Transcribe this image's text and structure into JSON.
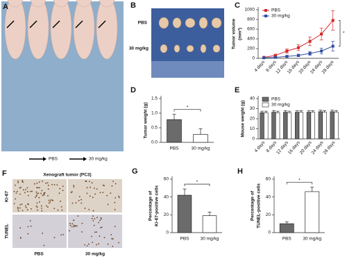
{
  "figure": {
    "panel_a": {
      "label": "A",
      "legend": [
        "PBS",
        "30 mg/kg"
      ]
    },
    "panel_b": {
      "label": "B",
      "rows": [
        "PBS",
        "30 mg/kg"
      ]
    },
    "panel_f": {
      "label": "F",
      "title": "Xenograft tumor (PC3)",
      "rows": [
        "Ki-67",
        "TUNEL"
      ],
      "columns": [
        "PBS",
        "30 mg/kg"
      ]
    }
  },
  "chart_data": [
    {
      "type": "line",
      "label": "C",
      "ylabel": [
        "Tumor volume",
        "(mm³)"
      ],
      "categories": [
        "4 days",
        "8 days",
        "12 days",
        "16 days",
        "20 days",
        "24 days",
        "28 days"
      ],
      "series": [
        {
          "name": "PBS",
          "color": "#d62728",
          "values": [
            20,
            60,
            150,
            220,
            350,
            500,
            780
          ],
          "errors": [
            10,
            25,
            40,
            60,
            90,
            120,
            200
          ]
        },
        {
          "name": "30 mg/kg",
          "color": "#2e4e9e",
          "values": [
            10,
            20,
            40,
            60,
            100,
            150,
            250
          ],
          "errors": [
            5,
            10,
            20,
            25,
            40,
            60,
            100
          ]
        }
      ],
      "ylim": [
        0,
        1000
      ],
      "yticks": [
        0,
        200,
        400,
        600,
        800,
        1000
      ],
      "annotation": "*",
      "legend": "top-left"
    },
    {
      "type": "bar",
      "label": "D",
      "ylabel": [
        "Tumor weight (g)"
      ],
      "categories": [
        "PBS",
        "30 mg/kg"
      ],
      "values": [
        0.78,
        0.27
      ],
      "errors": [
        0.18,
        0.2
      ],
      "colors": [
        "#6b6b6b",
        "#ffffff"
      ],
      "ylim": [
        0,
        1.5
      ],
      "yticks": [
        {
          "value": 0,
          "label": "0.0"
        },
        0.5,
        {
          "value": 1,
          "label": "1.0"
        },
        1.5
      ],
      "annotation": "*"
    },
    {
      "type": "bar",
      "label": "E",
      "ylabel": [
        "Mouse weight (g)"
      ],
      "categories": [
        "4 days",
        "8 days",
        "12 days",
        "16 days",
        "20 days",
        "24 days",
        "28 days"
      ],
      "series": [
        {
          "name": "PBS",
          "color": "#6b6b6b",
          "values": [
            26,
            26.5,
            26.5,
            26.5,
            26.5,
            27,
            27
          ],
          "errors": [
            1.5,
            1.5,
            1.5,
            1.5,
            1.5,
            1.5,
            1.5
          ]
        },
        {
          "name": "30 mg/kg",
          "color": "#ffffff",
          "values": [
            26,
            26,
            26,
            26.5,
            26.5,
            26.5,
            26.5
          ],
          "errors": [
            1.5,
            1.5,
            1.5,
            1.5,
            1.5,
            1.5,
            1.5
          ]
        }
      ],
      "ylim": [
        0,
        40
      ],
      "yticks": [
        0,
        10,
        20,
        30,
        40
      ],
      "legend": "top-left"
    },
    {
      "type": "bar",
      "label": "G",
      "ylabel": [
        "Percentage of",
        "Ki-67-positive cells"
      ],
      "categories": [
        "PBS",
        "30 mg/kg"
      ],
      "values": [
        42,
        19
      ],
      "errors": [
        7,
        4
      ],
      "colors": [
        "#6b6b6b",
        "#ffffff"
      ],
      "ylim": [
        0,
        60
      ],
      "yticks": [
        0,
        20,
        40,
        60
      ],
      "annotation": "*"
    },
    {
      "type": "bar",
      "label": "H",
      "ylabel": [
        "Percentage of",
        "TUNEL-positive cells"
      ],
      "categories": [
        "PBS",
        "30 mg/kg"
      ],
      "values": [
        10,
        46
      ],
      "errors": [
        2,
        5
      ],
      "colors": [
        "#6b6b6b",
        "#ffffff"
      ],
      "ylim": [
        0,
        60
      ],
      "yticks": [
        0,
        20,
        40,
        60
      ],
      "annotation": "*"
    }
  ]
}
